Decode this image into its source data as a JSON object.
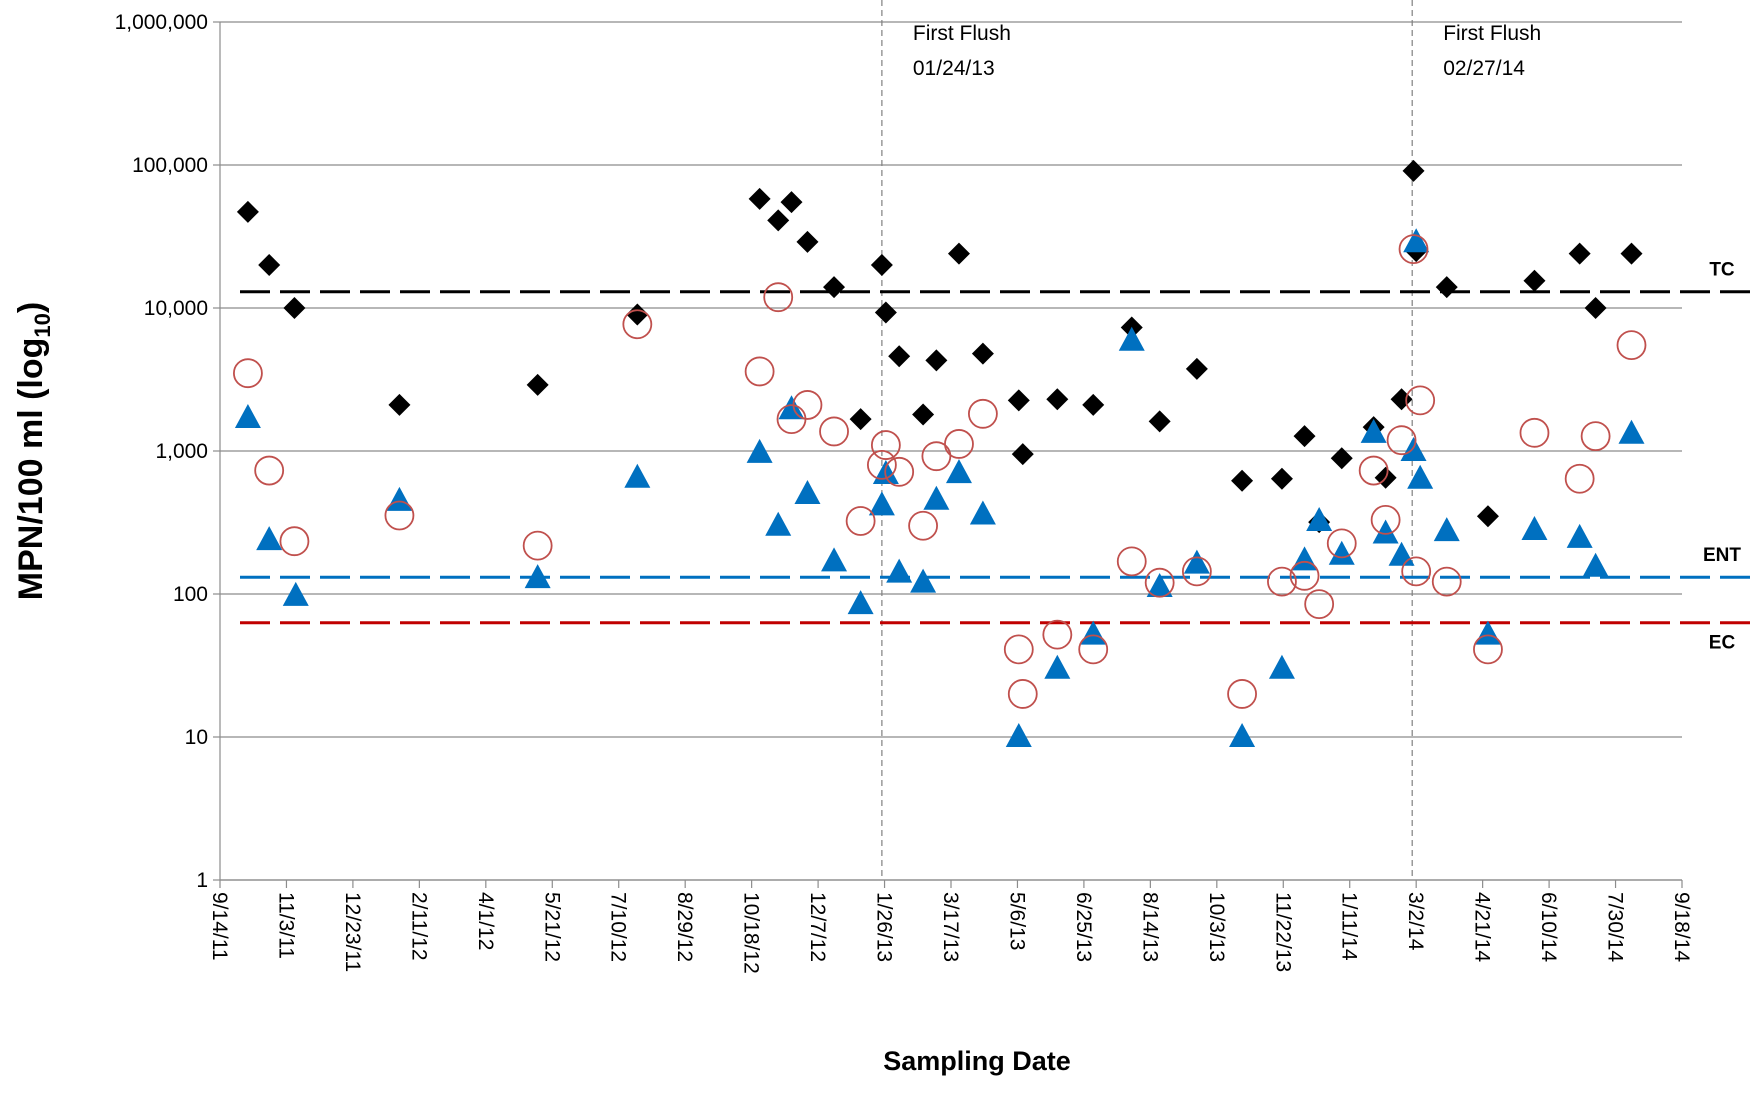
{
  "chart_data": {
    "type": "scatter",
    "x_label": "Sampling Date",
    "y_label": [
      "MPN/100 ml (log",
      "10",
      ")"
    ],
    "log_y": true,
    "grid": true,
    "xlim": [
      40800,
      41900
    ],
    "xticks": [
      {
        "value": 40800,
        "label": "9/14/11"
      },
      {
        "value": 40850,
        "label": "11/3/11"
      },
      {
        "value": 40900,
        "label": "12/23/11"
      },
      {
        "value": 40950,
        "label": "2/11/12"
      },
      {
        "value": 41000,
        "label": "4/1/12"
      },
      {
        "value": 41050,
        "label": "5/21/12"
      },
      {
        "value": 41100,
        "label": "7/10/12"
      },
      {
        "value": 41150,
        "label": "8/29/12"
      },
      {
        "value": 41200,
        "label": "10/18/12"
      },
      {
        "value": 41250,
        "label": "12/7/12"
      },
      {
        "value": 41300,
        "label": "1/26/13"
      },
      {
        "value": 41350,
        "label": "3/17/13"
      },
      {
        "value": 41400,
        "label": "5/6/13"
      },
      {
        "value": 41450,
        "label": "6/25/13"
      },
      {
        "value": 41500,
        "label": "8/14/13"
      },
      {
        "value": 41550,
        "label": "10/3/13"
      },
      {
        "value": 41600,
        "label": "11/22/13"
      },
      {
        "value": 41650,
        "label": "1/11/14"
      },
      {
        "value": 41700,
        "label": "3/2/14"
      },
      {
        "value": 41750,
        "label": "4/21/14"
      },
      {
        "value": 41800,
        "label": "6/10/14"
      },
      {
        "value": 41850,
        "label": "7/30/14"
      },
      {
        "value": 41900,
        "label": "9/18/14"
      }
    ],
    "ylim": [
      1,
      1000000
    ],
    "yticks": [
      1,
      10,
      100,
      {
        "value": 1000,
        "label": "1,000"
      },
      {
        "value": 10000,
        "label": "10,000"
      },
      {
        "value": 100000,
        "label": "100,000"
      },
      {
        "value": 1000000,
        "label": "1,000,000"
      }
    ],
    "series": [
      {
        "marker": "diamond",
        "color": "#000000",
        "x": [
          40821,
          40837,
          40856,
          40935,
          41039,
          41114,
          41206,
          41220,
          41230,
          41242,
          41262,
          41282,
          41298,
          41301,
          41311,
          41329,
          41339,
          41356,
          41374,
          41401,
          41404,
          41430,
          41457,
          41486,
          41507,
          41535,
          41569,
          41599,
          41616,
          41627,
          41644,
          41668,
          41677,
          41689,
          41698,
          41700,
          41723,
          41754,
          41789,
          41823,
          41835,
          41862
        ],
        "values": [
          47000,
          20000,
          10000,
          2100,
          2900,
          9000,
          58000,
          41000,
          55000,
          29000,
          14000,
          1670,
          20000,
          9300,
          4600,
          1800,
          4300,
          24000,
          4800,
          2260,
          950,
          2300,
          2100,
          7300,
          1610,
          3750,
          620,
          640,
          1270,
          318,
          890,
          1470,
          650,
          2300,
          91000,
          25000,
          14000,
          350,
          15500,
          24000,
          10000,
          24000
        ]
      },
      {
        "marker": "triangle",
        "color": "#0070c0",
        "x": [
          40821,
          40837,
          40857,
          40935,
          41039,
          41114,
          41206,
          41220,
          41230,
          41242,
          41262,
          41282,
          41298,
          41301,
          41311,
          41329,
          41339,
          41356,
          41374,
          41401,
          41430,
          41457,
          41486,
          41507,
          41535,
          41569,
          41599,
          41616,
          41627,
          41644,
          41668,
          41677,
          41689,
          41698,
          41700,
          41703,
          41723,
          41754,
          41789,
          41823,
          41835,
          41862
        ],
        "values": [
          1700,
          238,
          97,
          448,
          129,
          650,
          970,
          300,
          1960,
          500,
          169,
          85,
          417,
          690,
          141,
          120,
          456,
          700,
          360,
          10,
          30,
          52,
          5900,
          112,
          163,
          10,
          30,
          172,
          324,
          188,
          1340,
          265,
          185,
          1000,
          28800,
          640,
          275,
          52,
          280,
          247,
          155,
          1320
        ]
      },
      {
        "marker": "circle-open",
        "color": "#c0504d",
        "x": [
          40821,
          40837,
          40856,
          40935,
          41039,
          41114,
          41206,
          41220,
          41230,
          41242,
          41262,
          41282,
          41298,
          41301,
          41311,
          41329,
          41339,
          41356,
          41374,
          41401,
          41404,
          41430,
          41457,
          41486,
          41507,
          41535,
          41569,
          41599,
          41616,
          41627,
          41644,
          41668,
          41677,
          41689,
          41698,
          41700,
          41703,
          41723,
          41754,
          41789,
          41823,
          41835,
          41862
        ],
        "values": [
          3500,
          730,
          234,
          354,
          218,
          7700,
          3600,
          11900,
          1670,
          2100,
          1370,
          324,
          800,
          1100,
          715,
          300,
          920,
          1120,
          1820,
          41,
          20,
          52,
          41,
          169,
          120,
          144,
          20,
          122,
          134,
          85,
          226,
          730,
          330,
          1190,
          25800,
          144,
          2260,
          122,
          41,
          1340,
          640,
          1270,
          5500
        ]
      }
    ],
    "reference_lines": [
      {
        "label": "TC",
        "value": 13000,
        "color": "#000000"
      },
      {
        "label": "ENT",
        "value": 131,
        "color": "#0070c0"
      },
      {
        "label": "EC",
        "value": 63,
        "color": "#c00000"
      }
    ],
    "annotations": [
      {
        "x": 41298,
        "lines": [
          "First Flush",
          "01/24/13"
        ]
      },
      {
        "x": 41697,
        "lines": [
          "First Flush",
          "02/27/14"
        ]
      }
    ]
  }
}
